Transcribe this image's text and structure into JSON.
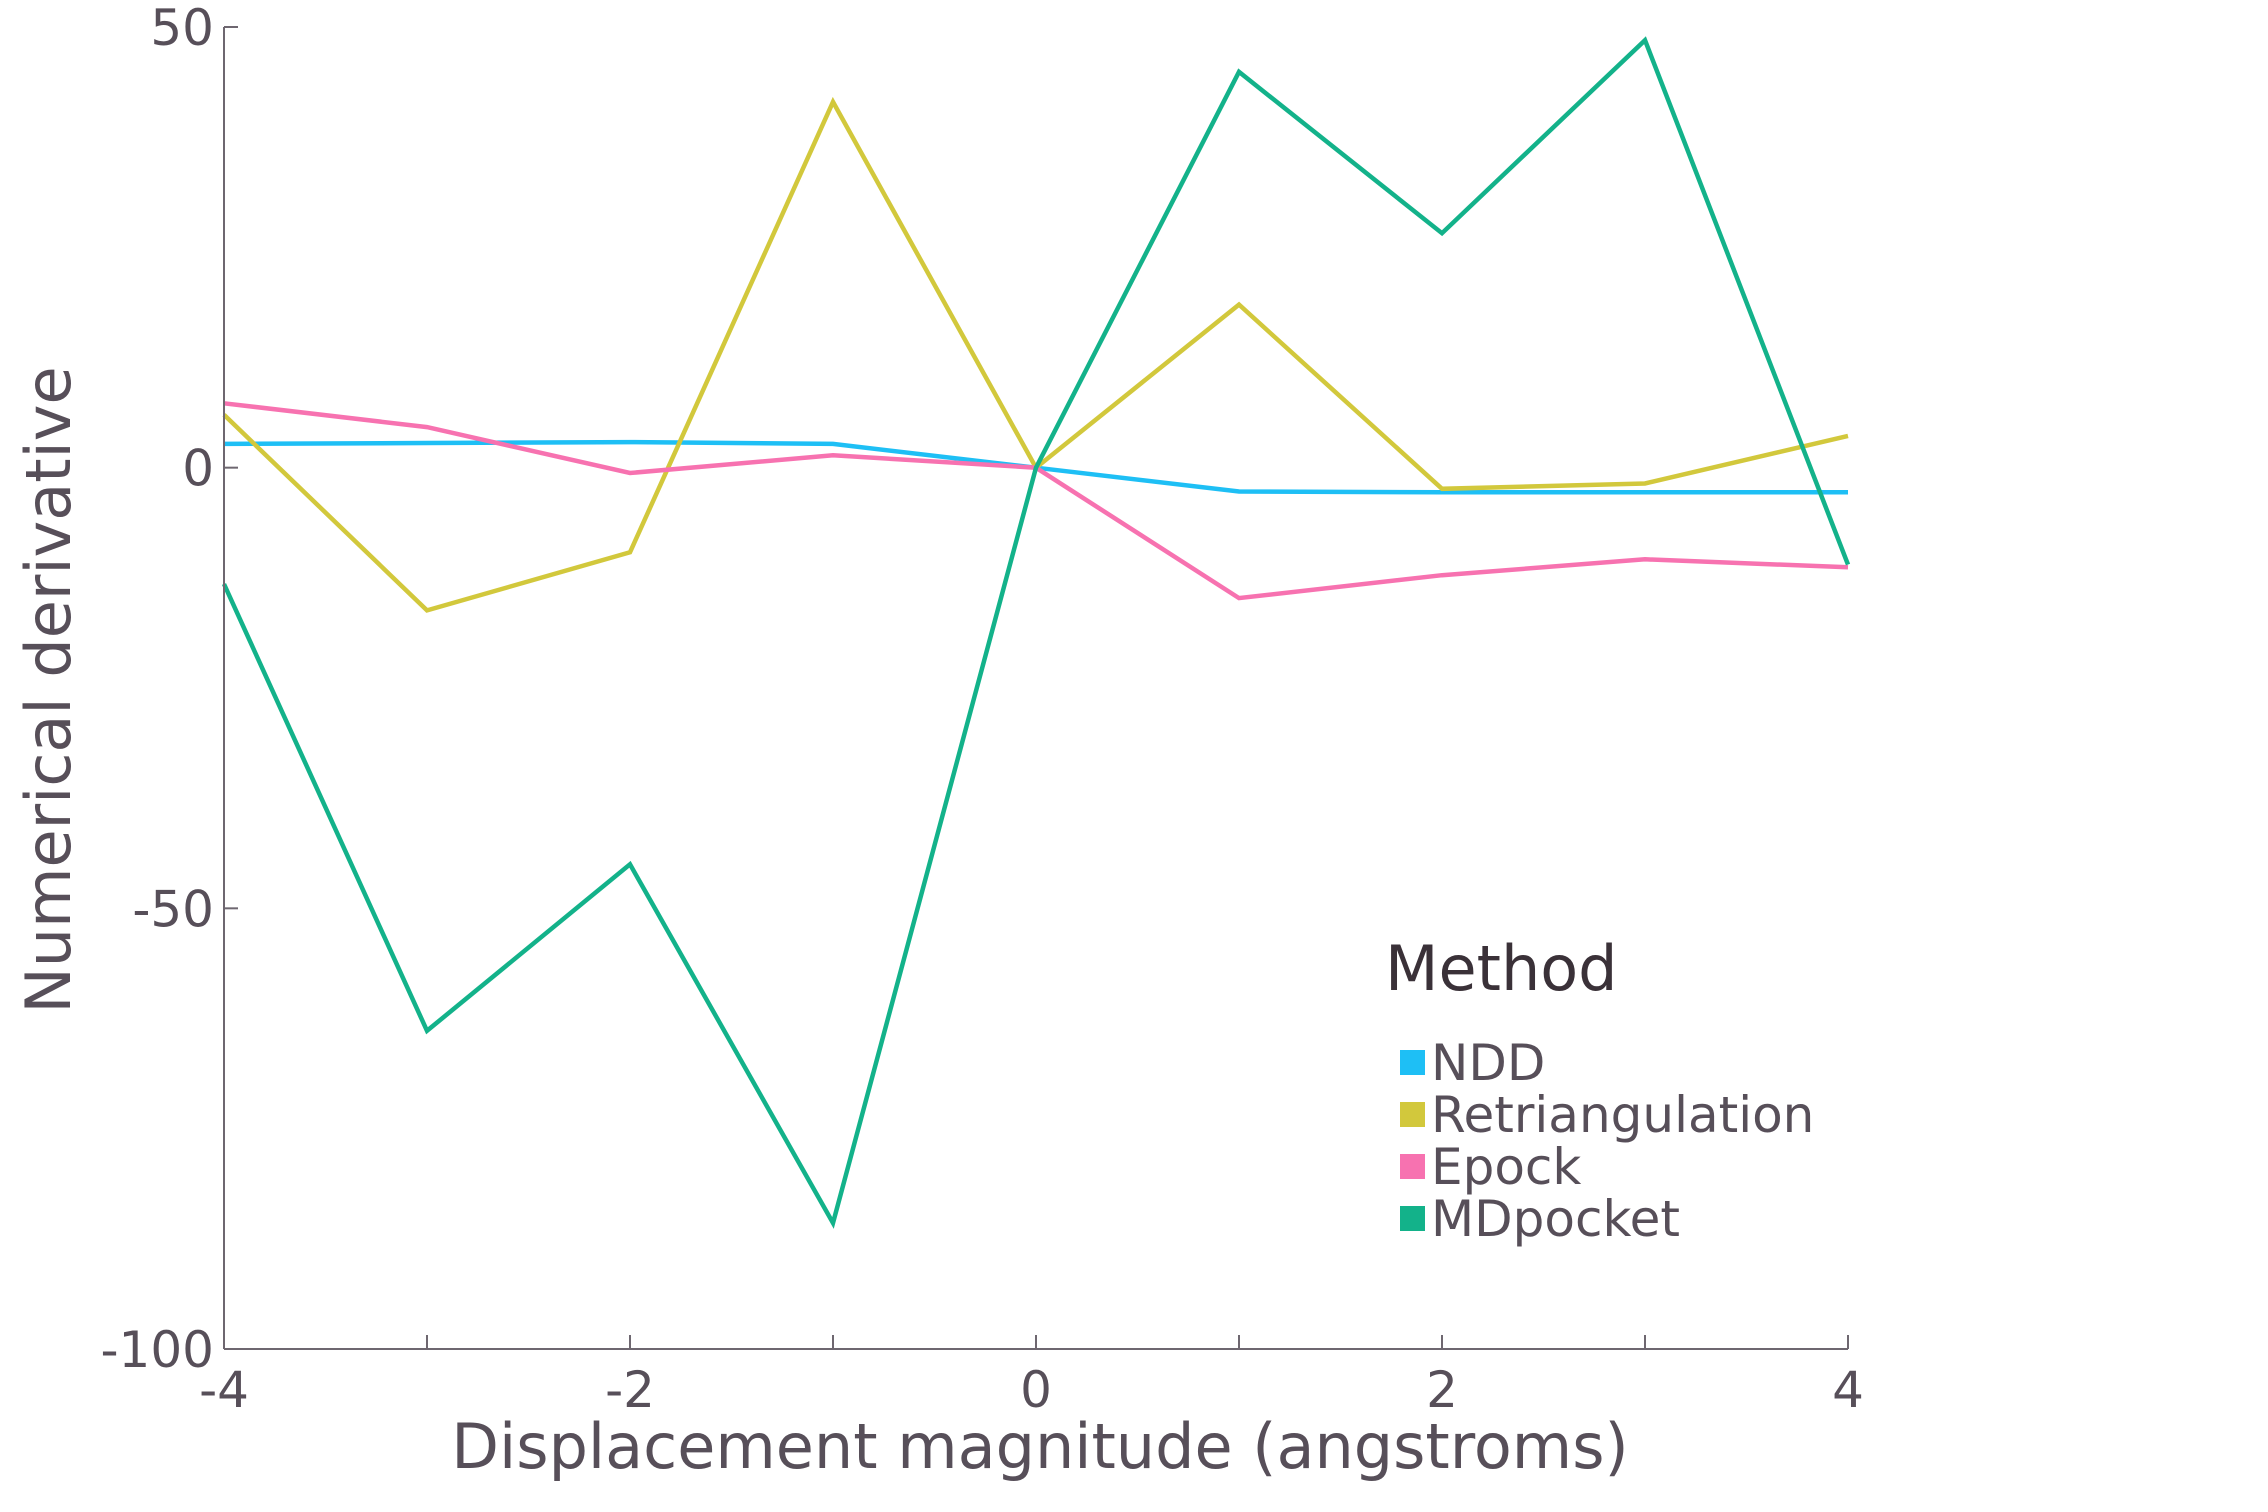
{
  "chart_data": {
    "type": "line",
    "xlabel": "Displacement magnitude (angstroms)",
    "ylabel": "Numerical derivative",
    "xlim": [
      -4,
      4
    ],
    "ylim": [
      -100,
      50
    ],
    "x_ticks": [
      -4,
      -2,
      0,
      2,
      4
    ],
    "x_tick_labels": [
      "-4",
      "-2",
      "0",
      "2",
      "4"
    ],
    "x_minor_ticks": [
      -3,
      -1,
      1,
      3
    ],
    "y_ticks": [
      50,
      0,
      -50,
      -100
    ],
    "y_tick_labels": [
      "50",
      "0",
      "-50",
      "-100"
    ],
    "grid": false,
    "legend": {
      "title": "Method",
      "placement": "bottom-right"
    },
    "x": [
      -4,
      -3,
      -2,
      -1,
      0,
      1,
      2,
      3,
      4
    ],
    "series": [
      {
        "name": "NDD",
        "color": "#1ebff5",
        "values": [
          2.7,
          2.8,
          2.9,
          2.7,
          0,
          -2.7,
          -2.8,
          -2.8,
          -2.8
        ]
      },
      {
        "name": "Retriangulation",
        "color": "#d2c83c",
        "values": [
          6.0,
          -16.2,
          -9.6,
          41.5,
          0,
          18.5,
          -2.4,
          -1.8,
          3.6
        ]
      },
      {
        "name": "Epock",
        "color": "#f772b0",
        "values": [
          7.3,
          4.6,
          -0.6,
          1.4,
          0,
          -14.8,
          -12.2,
          -10.4,
          -11.3
        ]
      },
      {
        "name": "MDpocket",
        "color": "#13b28a",
        "values": [
          -13.2,
          -63.9,
          -45.0,
          -85.7,
          0,
          44.9,
          26.6,
          48.5,
          -11.0
        ]
      }
    ]
  }
}
